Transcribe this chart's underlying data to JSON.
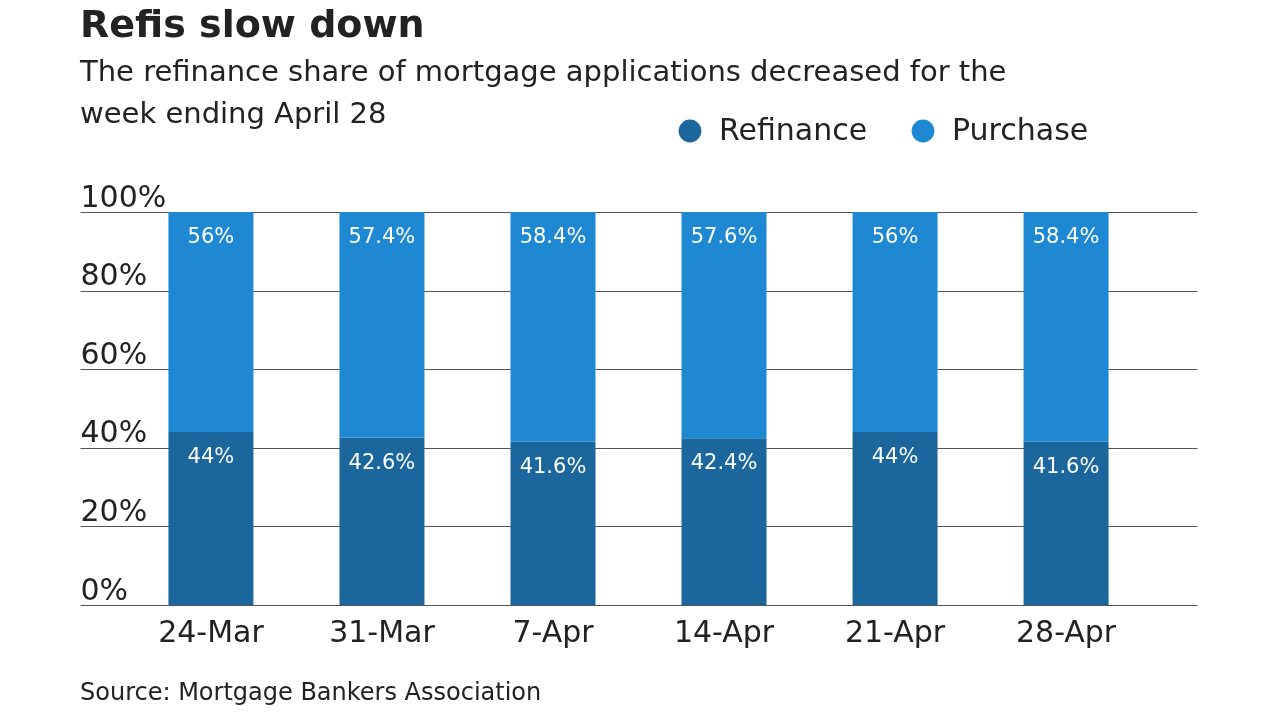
{
  "chart_data": {
    "type": "bar",
    "title": "Refis slow down",
    "subtitle": "The refinance share of mortgage applications decreased for the week ending April 28",
    "categories": [
      "24-Mar",
      "31-Mar",
      "7-Apr",
      "14-Apr",
      "21-Apr",
      "28-Apr"
    ],
    "stacked": true,
    "series": [
      {
        "name": "Refinance",
        "color": "#1a669d",
        "values": [
          44,
          42.6,
          41.6,
          42.4,
          44,
          41.6
        ],
        "value_labels": [
          "44%",
          "42.6%",
          "41.6%",
          "42.4%",
          "44%",
          "41.6%"
        ]
      },
      {
        "name": "Purchase",
        "color": "#1e88d2",
        "values": [
          56,
          57.4,
          58.4,
          57.6,
          56,
          58.4
        ],
        "value_labels": [
          "56%",
          "57.4%",
          "58.4%",
          "57.6%",
          "56%",
          "58.4%"
        ]
      }
    ],
    "ylim": [
      0,
      100
    ],
    "yticks": [
      {
        "value": 0,
        "label": "0%"
      },
      {
        "value": 20,
        "label": "20%"
      },
      {
        "value": 40,
        "label": "40%"
      },
      {
        "value": 60,
        "label": "60%"
      },
      {
        "value": 80,
        "label": "80%"
      },
      {
        "value": 100,
        "label": "100%"
      }
    ],
    "grid": "y",
    "legend": "top right",
    "annotations": [
      "Source: Mortgage Bankers Association"
    ]
  }
}
